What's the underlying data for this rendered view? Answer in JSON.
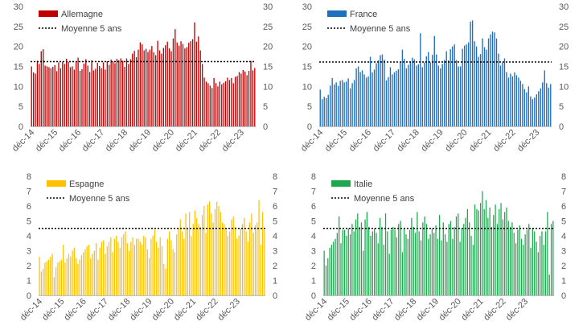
{
  "chart_data": [
    {
      "type": "bar",
      "legend_series": "Allemagne",
      "legend_avg": "Moyenne 5 ans",
      "color": "#c00000",
      "ylim": [
        0,
        30
      ],
      "yticks": [
        "0",
        "5",
        "10",
        "15",
        "20",
        "25",
        "30"
      ],
      "xtick_labels": [
        "déc-14",
        "déc-15",
        "déc-16",
        "déc-17",
        "déc-18",
        "déc-19",
        "déc-20",
        "déc-21",
        "déc-22",
        "déc-23"
      ],
      "average": 16.2,
      "values": [
        15.0,
        13.5,
        13.2,
        16.4,
        15.6,
        18.8,
        19.3,
        15.2,
        15.0,
        14.8,
        14.5,
        14.9,
        15.3,
        13.8,
        16.0,
        14.5,
        16.2,
        15.6,
        16.9,
        16.1,
        14.8,
        15.0,
        14.2,
        16.3,
        17.2,
        13.9,
        14.3,
        15.7,
        16.8,
        15.2,
        13.6,
        16.5,
        14.0,
        14.4,
        15.9,
        15.1,
        14.5,
        16.0,
        14.2,
        16.3,
        15.4,
        16.7,
        16.2,
        15.8,
        16.9,
        16.5,
        17.0,
        16.4,
        14.9,
        17.0,
        15.6,
        16.8,
        18.2,
        18.9,
        17.3,
        19.2,
        21.0,
        20.5,
        19.0,
        19.4,
        18.6,
        19.2,
        20.1,
        18.5,
        17.8,
        21.4,
        19.0,
        18.2,
        19.6,
        20.3,
        21.2,
        19.5,
        18.8,
        22.0,
        24.3,
        21.0,
        20.2,
        21.3,
        20.6,
        19.5,
        19.8,
        20.9,
        21.3,
        21.8,
        26.0,
        21.2,
        22.5,
        19.0,
        15.6,
        12.2,
        11.2,
        10.8,
        10.2,
        9.6,
        12.1,
        10.8,
        10.0,
        11.2,
        10.5,
        10.9,
        11.3,
        12.2,
        11.6,
        12.1,
        10.8,
        12.4,
        12.6,
        13.6,
        13.2,
        14.1,
        13.7,
        12.8,
        13.9,
        16.4,
        14.0,
        14.6
      ]
    },
    {
      "type": "bar",
      "legend_series": "France",
      "legend_avg": "Moyenne 5 ans",
      "color": "#1f6fbf",
      "ylim": [
        0,
        30
      ],
      "yticks": [
        "0",
        "5",
        "10",
        "15",
        "20",
        "25",
        "30"
      ],
      "xtick_labels": [
        "déc-14",
        "déc-15",
        "déc-16",
        "déc-17",
        "déc-18",
        "déc-19",
        "déc-20",
        "déc-21",
        "déc-22",
        "déc-23"
      ],
      "average": 16.1,
      "values": [
        9.2,
        6.8,
        7.4,
        7.1,
        7.9,
        10.2,
        12.1,
        10.5,
        11.0,
        10.1,
        11.4,
        11.6,
        11.0,
        11.2,
        12.0,
        9.5,
        10.8,
        11.6,
        14.5,
        15.0,
        13.6,
        14.0,
        13.0,
        12.2,
        12.5,
        17.4,
        13.5,
        14.2,
        15.8,
        16.5,
        17.8,
        18.0,
        16.7,
        11.5,
        12.3,
        14.8,
        13.0,
        13.5,
        13.9,
        14.3,
        16.2,
        19.2,
        16.9,
        14.5,
        15.4,
        16.0,
        17.2,
        16.8,
        15.2,
        15.5,
        23.3,
        14.8,
        16.0,
        17.5,
        18.6,
        16.0,
        17.9,
        22.6,
        18.0,
        15.2,
        14.5,
        15.6,
        16.6,
        18.8,
        16.5,
        19.3,
        20.0,
        20.5,
        16.6,
        15.0,
        15.0,
        19.4,
        20.2,
        20.5,
        21.0,
        26.2,
        26.5,
        21.3,
        20.0,
        17.4,
        18.1,
        22.0,
        19.8,
        19.2,
        22.0,
        23.0,
        23.7,
        23.5,
        22.0,
        18.2,
        15.2,
        16.0,
        17.0,
        13.6,
        12.2,
        13.2,
        12.5,
        13.5,
        12.8,
        12.2,
        11.4,
        10.6,
        9.3,
        8.5,
        10.0,
        7.5,
        6.8,
        7.2,
        8.0,
        8.8,
        9.5,
        11.0,
        14.0,
        10.8,
        9.7,
        10.6
      ]
    },
    {
      "type": "bar",
      "legend_series": "Espagne",
      "legend_avg": "Moyenne 5 ans",
      "color": "#ffc000",
      "ylim": [
        0,
        8
      ],
      "yticks": [
        "0",
        "1",
        "2",
        "3",
        "4",
        "5",
        "6",
        "7",
        "8"
      ],
      "xtick_labels": [
        "déc-14",
        "déc-15",
        "déc-16",
        "déc-17",
        "déc-18",
        "déc-19",
        "déc-20",
        "déc-21",
        "déc-22",
        "déc-23"
      ],
      "average": 4.5,
      "values": [
        2.6,
        1.6,
        1.8,
        2.2,
        2.3,
        2.4,
        2.6,
        2.8,
        1.2,
        1.9,
        2.2,
        2.3,
        2.4,
        3.4,
        2.2,
        2.5,
        2.8,
        2.6,
        3.0,
        3.2,
        2.5,
        2.1,
        2.4,
        2.7,
        2.9,
        3.1,
        3.3,
        3.4,
        2.5,
        2.8,
        3.0,
        3.5,
        2.4,
        3.2,
        3.6,
        3.7,
        2.8,
        3.3,
        3.6,
        3.9,
        2.9,
        3.8,
        4.0,
        3.6,
        3.2,
        3.9,
        4.1,
        4.3,
        3.5,
        3.0,
        3.6,
        3.9,
        3.4,
        3.8,
        3.8,
        3.6,
        3.4,
        4.0,
        3.9,
        3.1,
        2.5,
        3.8,
        4.0,
        4.4,
        3.6,
        3.2,
        3.9,
        3.3,
        2.1,
        1.8,
        3.8,
        4.3,
        3.7,
        3.1,
        2.9,
        4.1,
        4.5,
        5.1,
        4.3,
        3.8,
        5.5,
        4.5,
        5.6,
        4.0,
        4.8,
        5.7,
        5.2,
        4.8,
        4.6,
        5.4,
        6.0,
        4.2,
        6.1,
        6.3,
        5.5,
        4.9,
        5.8,
        6.3,
        6.0,
        5.6,
        4.9,
        4.8,
        4.5,
        4.0,
        4.3,
        5.1,
        5.3,
        4.6,
        3.8,
        4.0,
        4.5,
        4.8,
        5.2,
        4.3,
        3.6,
        4.9,
        5.5,
        4.2,
        4.7,
        4.9,
        6.4,
        3.4,
        5.6,
        4.4
      ]
    },
    {
      "type": "bar",
      "legend_series": "Italie",
      "legend_avg": "Moyenne 5 ans",
      "color": "#1ea84e",
      "ylim": [
        0,
        8
      ],
      "yticks": [
        "0",
        "1",
        "2",
        "3",
        "4",
        "5",
        "6",
        "7",
        "8"
      ],
      "xtick_labels": [
        "déc-14",
        "déc-15",
        "déc-16",
        "déc-17",
        "déc-18",
        "déc-19",
        "déc-20",
        "déc-21",
        "déc-22",
        "déc-23"
      ],
      "average": 4.5,
      "values": [
        3.0,
        2.0,
        2.5,
        3.2,
        3.4,
        3.6,
        3.8,
        4.2,
        5.3,
        3.5,
        4.4,
        4.4,
        4.0,
        4.5,
        4.1,
        4.8,
        4.3,
        5.1,
        5.5,
        4.6,
        4.9,
        3.0,
        5.1,
        5.6,
        4.6,
        4.0,
        4.3,
        4.5,
        4.2,
        3.5,
        5.2,
        4.6,
        3.4,
        5.5,
        4.3,
        2.8,
        4.4,
        4.6,
        4.4,
        3.9,
        4.8,
        5.0,
        2.9,
        4.5,
        4.1,
        3.8,
        4.4,
        5.2,
        4.6,
        4.2,
        5.6,
        4.3,
        3.7,
        4.9,
        5.3,
        4.8,
        3.8,
        4.1,
        4.5,
        4.2,
        4.7,
        3.8,
        5.4,
        3.7,
        4.9,
        4.1,
        3.6,
        4.8,
        5.0,
        3.8,
        4.6,
        5.3,
        5.5,
        3.6,
        4.5,
        4.8,
        5.2,
        5.8,
        4.9,
        4.0,
        3.4,
        6.1,
        5.8,
        5.7,
        6.2,
        7.0,
        5.8,
        6.4,
        5.2,
        5.9,
        4.6,
        5.4,
        6.1,
        4.8,
        5.8,
        6.2,
        5.1,
        5.6,
        5.9,
        5.0,
        4.6,
        4.9,
        4.2,
        3.5,
        4.4,
        4.7,
        3.8,
        3.4,
        4.1,
        4.4,
        4.8,
        3.2,
        4.5,
        4.3,
        3.6,
        2.9,
        4.0,
        4.3,
        3.4,
        4.3,
        5.6,
        1.4,
        4.8,
        5.0
      ]
    }
  ]
}
